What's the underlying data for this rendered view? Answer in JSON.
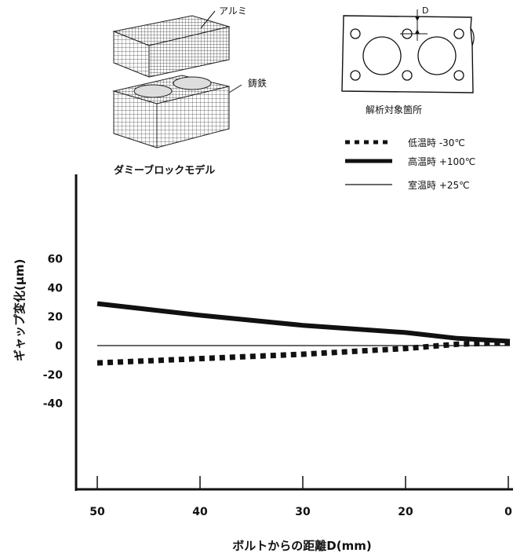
{
  "figure": {
    "block_model": {
      "label_aluminum": "アルミ",
      "label_cast_iron": "鋳鉄",
      "caption": "ダミーブロックモデル"
    },
    "target_area": {
      "label_d": "D",
      "caption": "解析対象箇所"
    }
  },
  "chart_data": {
    "type": "line",
    "xlabel": "ボルトからの距離D(mm)",
    "ylabel": "ギャップ変化(μm)",
    "x_ticks": [
      50,
      40,
      30,
      20,
      0
    ],
    "y_ticks": [
      60,
      40,
      20,
      0,
      -20,
      -40
    ],
    "xlim": [
      50,
      0
    ],
    "x_tick_positions_note": "",
    "ylim": [
      -95,
      60
    ],
    "grid": false,
    "legend_position": "top-right",
    "series": [
      {
        "name": "低温時 -30℃",
        "style": "dotted-thick",
        "color": "#111111",
        "x": [
          50,
          40,
          30,
          20,
          10,
          0
        ],
        "y": [
          -12,
          -9,
          -6,
          -2,
          1,
          2
        ]
      },
      {
        "name": "高温時 +100℃",
        "style": "solid-thick",
        "color": "#111111",
        "x": [
          50,
          40,
          30,
          20,
          10,
          0
        ],
        "y": [
          29,
          21,
          14,
          9,
          5,
          3
        ]
      },
      {
        "name": "室温時 +25℃",
        "style": "solid-thin",
        "color": "#111111",
        "x": [
          50,
          0
        ],
        "y": [
          0,
          0
        ]
      }
    ]
  }
}
